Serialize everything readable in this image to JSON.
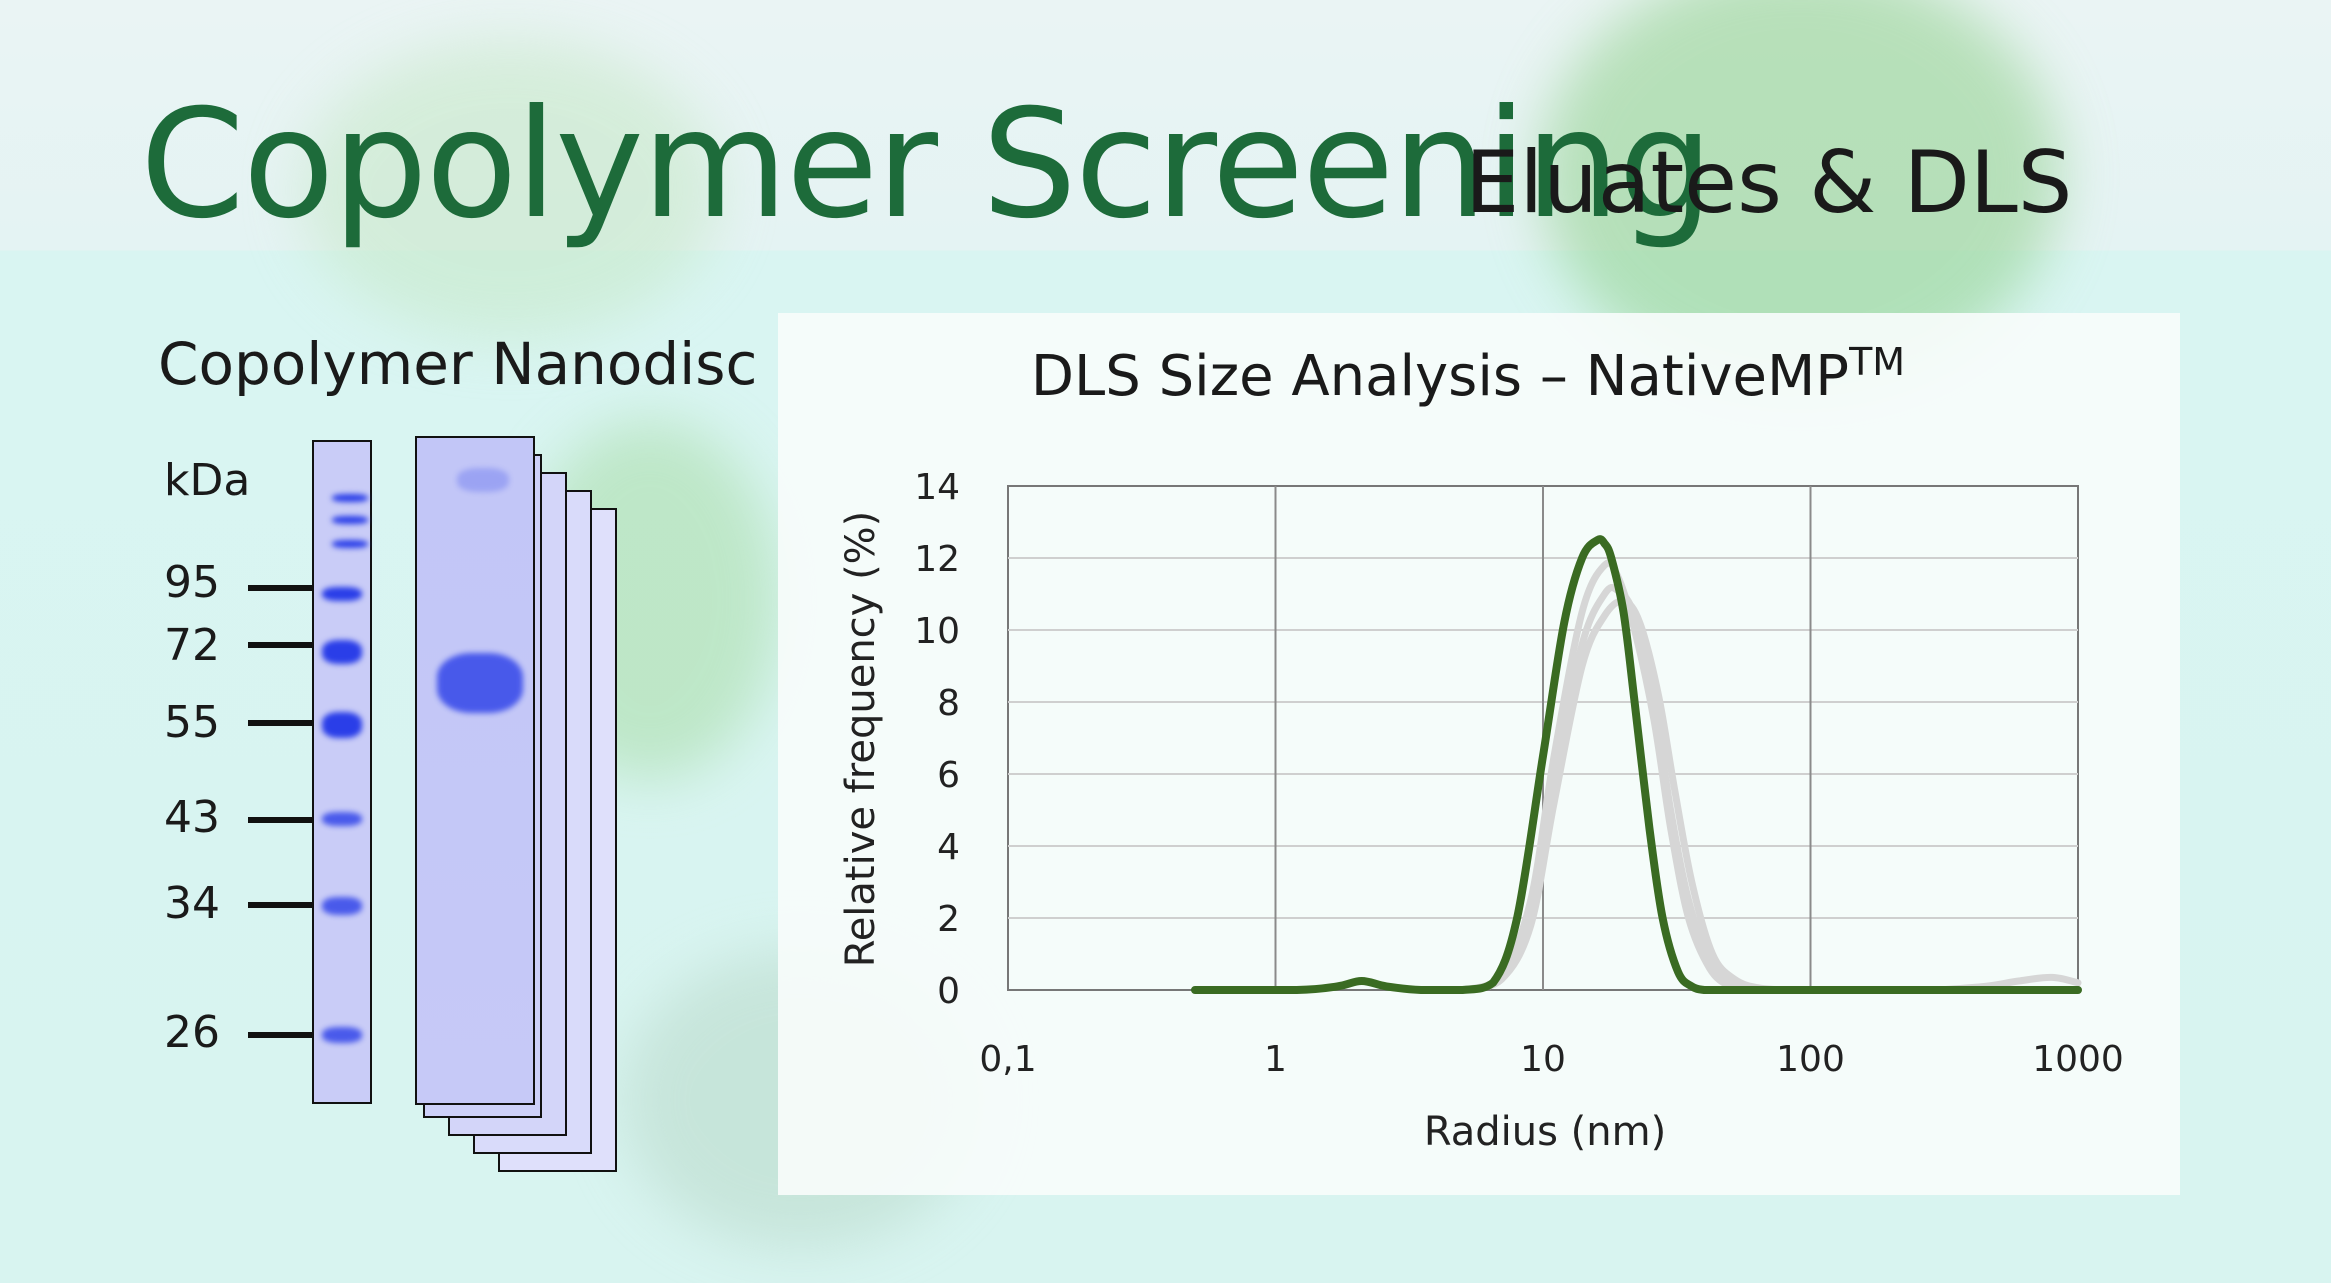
{
  "header": {
    "title": "Copolymer Screening",
    "subtitle": "Eluates & DLS"
  },
  "gel": {
    "title": "Copolymer Nanodisc",
    "unit_label": "kDa",
    "markers": [
      "95",
      "72",
      "55",
      "43",
      "34",
      "26"
    ]
  },
  "chart_data": {
    "type": "line",
    "title": "DLS Size Analysis – NativeMP",
    "title_superscript": "TM",
    "xlabel": "Radius (nm)",
    "ylabel": "Relative frequency (%)",
    "xscale": "log",
    "xlim": [
      0.1,
      1000
    ],
    "ylim": [
      0,
      14
    ],
    "x_ticks": [
      "0,1",
      "1",
      "10",
      "100",
      "1000"
    ],
    "y_ticks": [
      "0",
      "2",
      "4",
      "6",
      "8",
      "10",
      "12",
      "14"
    ],
    "grid": true,
    "series": [
      {
        "color": "#3a6b22",
        "x": [
          0.5,
          1.2,
          1.7,
          2.1,
          2.6,
          3.5,
          5,
          6.5,
          8,
          10,
          12,
          14,
          16,
          17,
          18,
          20,
          22,
          25,
          28,
          32,
          36,
          40,
          45,
          60,
          1000
        ],
        "y": [
          0,
          0,
          0.1,
          0.25,
          0.1,
          0,
          0,
          0.2,
          2,
          6.5,
          10.2,
          12.0,
          12.5,
          12.4,
          12.0,
          10.5,
          8.0,
          4.5,
          2.0,
          0.5,
          0.1,
          0,
          0,
          0,
          0
        ]
      },
      {
        "color": "#d6d6d6",
        "x": [
          5,
          7,
          9,
          11,
          14,
          17,
          19,
          22,
          26,
          30,
          35,
          42,
          50,
          60,
          80
        ],
        "y": [
          0,
          0.4,
          2.5,
          6.5,
          10.5,
          11.8,
          11.5,
          10.0,
          7.5,
          4.5,
          2.0,
          0.6,
          0.1,
          0,
          0
        ]
      },
      {
        "color": "#d6d6d6",
        "x": [
          5,
          7,
          9,
          11,
          14,
          17,
          19,
          22,
          26,
          30,
          35,
          42,
          50,
          60,
          80
        ],
        "y": [
          0,
          0.3,
          2.0,
          5.8,
          9.6,
          11.0,
          11.1,
          10.4,
          8.0,
          5.0,
          2.5,
          0.8,
          0.2,
          0,
          0
        ]
      },
      {
        "color": "#d6d6d6",
        "x": [
          5,
          7,
          9,
          11,
          14,
          17,
          20,
          23,
          27,
          31,
          36,
          43,
          52,
          65,
          90
        ],
        "y": [
          0,
          0.3,
          1.8,
          5.2,
          9.0,
          10.4,
          10.8,
          10.2,
          8.2,
          5.6,
          3.0,
          1.0,
          0.3,
          0.05,
          0
        ]
      },
      {
        "color": "#d6d6d6",
        "x": [
          300,
          450,
          600,
          800,
          1000
        ],
        "y": [
          0,
          0.1,
          0.25,
          0.35,
          0.2
        ]
      }
    ]
  }
}
